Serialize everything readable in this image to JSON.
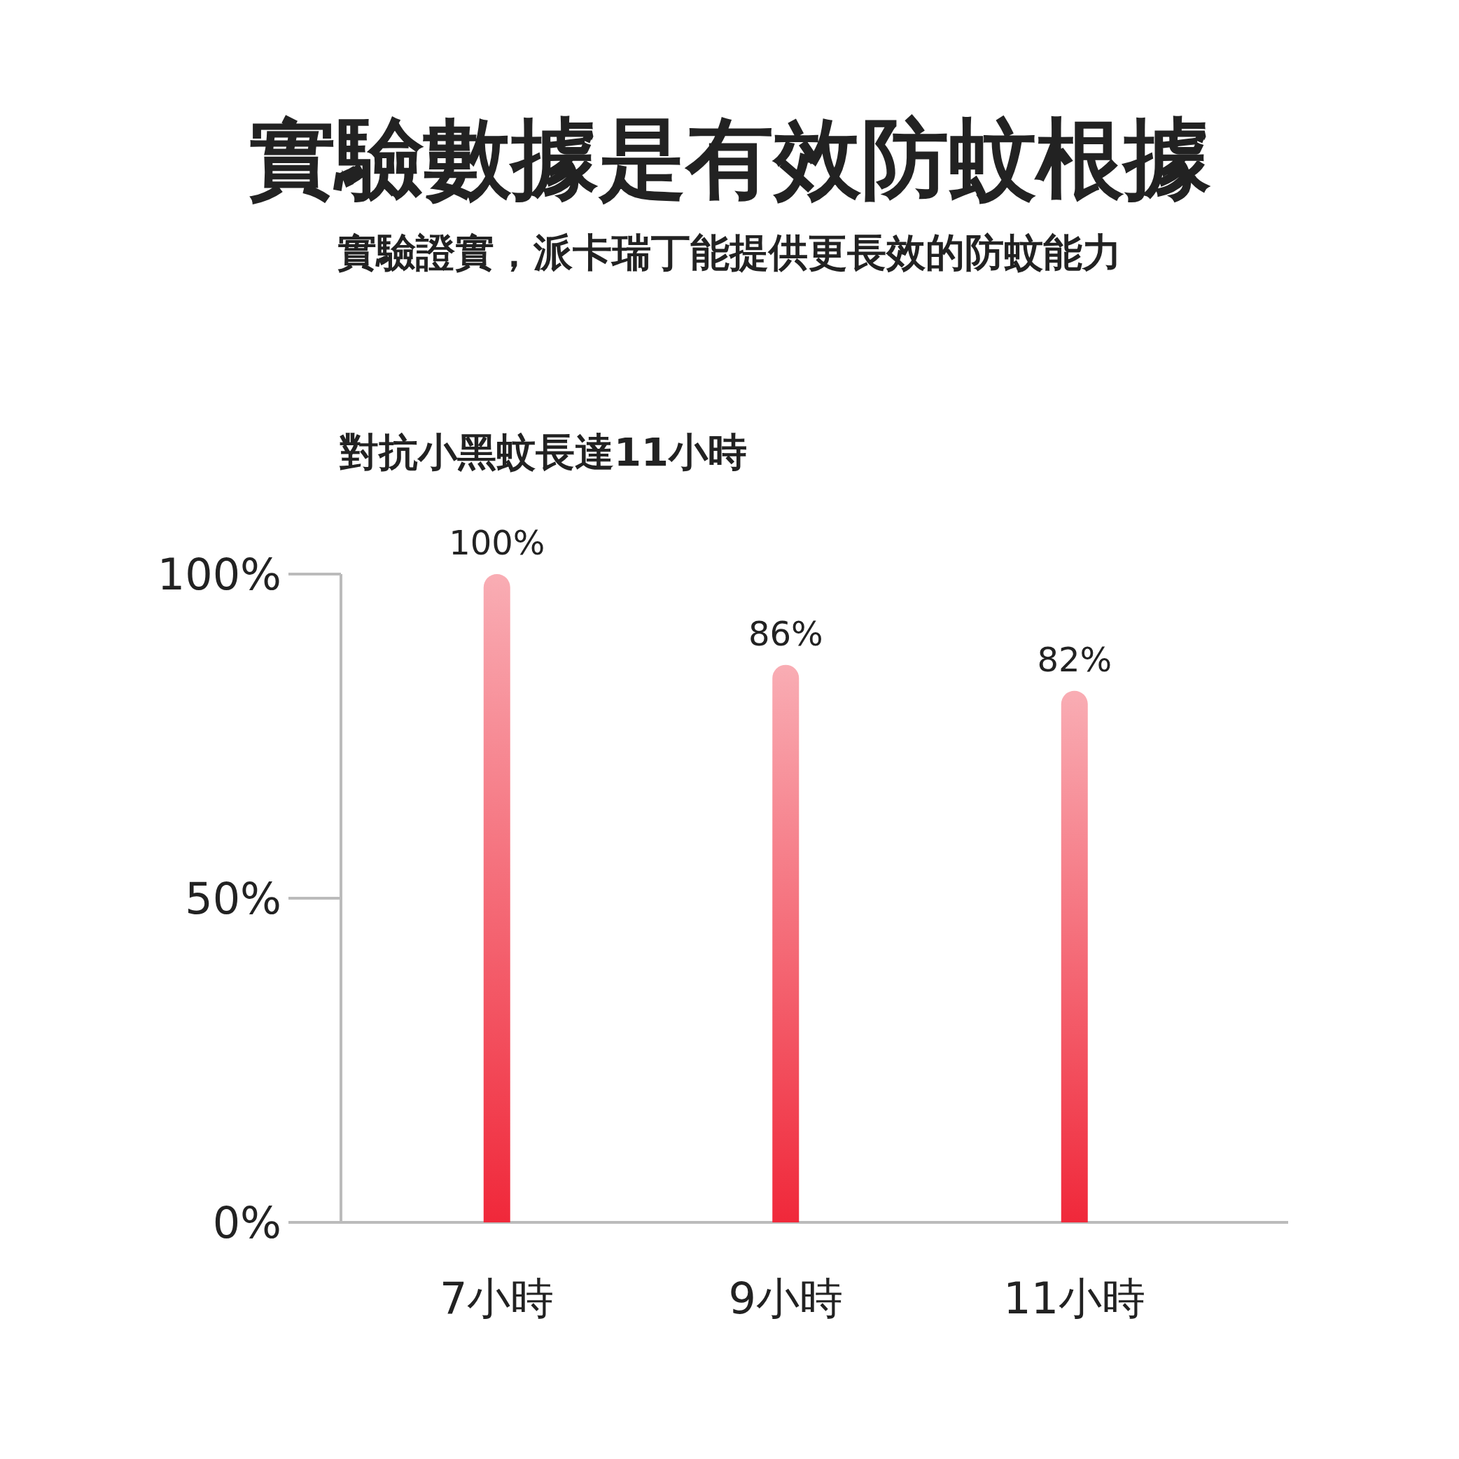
{
  "chart_data": {
    "type": "bar",
    "title": "實驗數據是有效防蚊根據",
    "subtitle": "實驗證實，派卡瑞丁能提供更長效的防蚊能力",
    "annotations": [
      "對抗小黑蚊長達11小時"
    ],
    "categories": [
      "7小時",
      "9小時",
      "11小時"
    ],
    "values": [
      100,
      86,
      82
    ],
    "color": "#f0283a",
    "ylim": [
      0,
      100
    ],
    "yticks": [
      {
        "value": 0,
        "label": "0%"
      },
      {
        "value": 50,
        "label": "50%"
      },
      {
        "value": 100,
        "label": "100%"
      }
    ],
    "value_labels": [
      "100%",
      "86%",
      "82%"
    ],
    "grid": false
  }
}
